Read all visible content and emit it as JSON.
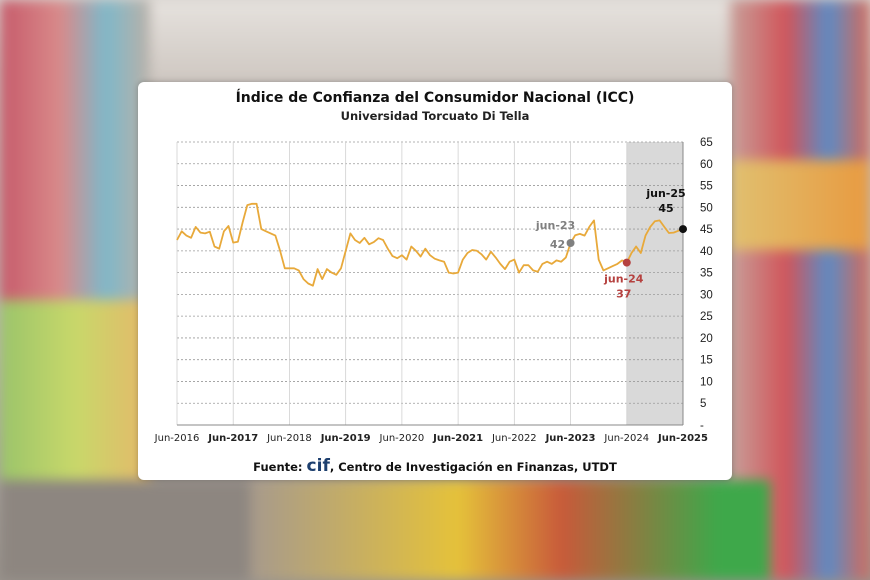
{
  "chart_data": {
    "type": "line",
    "title": "Índice de Confianza del Consumidor Nacional (ICC)",
    "subtitle": "Universidad Torcuato Di Tella",
    "source_prefix": "Fuente:",
    "source_logo": "cif",
    "source_rest": ", Centro de Investigación en Finanzas, UTDT",
    "xlabel": "",
    "ylabel": "",
    "x_start": "Jun-2016",
    "x_unit": "month",
    "x_ticks": [
      "Jun-2016",
      "Jun-2017",
      "Jun-2018",
      "Jun-2019",
      "Jun-2020",
      "Jun-2021",
      "Jun-2022",
      "Jun-2023",
      "Jun-2024",
      "Jun-2025"
    ],
    "y_ticks": [
      "-",
      "5",
      "10",
      "15",
      "20",
      "25",
      "30",
      "35",
      "40",
      "45",
      "50",
      "55",
      "60",
      "65"
    ],
    "ylim": [
      0,
      65
    ],
    "grid": true,
    "shaded_region_months": [
      96,
      108
    ],
    "series": [
      {
        "name": "ICC",
        "color": "#e8a93a",
        "values": [
          42.5,
          44.5,
          43.5,
          43,
          45.5,
          44.2,
          44,
          44.4,
          41,
          40.5,
          44.5,
          45.7,
          41.9,
          42.1,
          46.5,
          50.5,
          50.8,
          50.8,
          45,
          44.5,
          44,
          43.5,
          40,
          36,
          36,
          36,
          35.5,
          33.5,
          32.5,
          32,
          35.8,
          33.5,
          35.8,
          35,
          34.5,
          36,
          40,
          44,
          42.5,
          41.8,
          43,
          41.5,
          42,
          42.9,
          42.5,
          40.5,
          38.8,
          38.3,
          39,
          38,
          41,
          40,
          38.7,
          40.5,
          39,
          38.2,
          37.8,
          37.5,
          35,
          34.8,
          35,
          38,
          39.5,
          40.2,
          40,
          39.2,
          38,
          39.8,
          38.5,
          37,
          35.8,
          37.5,
          38,
          35,
          36.7,
          36.7,
          35.5,
          35.2,
          37,
          37.5,
          37,
          37.8,
          37.5,
          38.5,
          41.8,
          43.6,
          43.9,
          43.5,
          45.5,
          47,
          38,
          35.5,
          36,
          36.5,
          37,
          37.8,
          37.3,
          39.5,
          41,
          39.5,
          43.5,
          45.5,
          46.8,
          47,
          45.5,
          44.1,
          44.2,
          44.6,
          45
        ]
      }
    ],
    "annotations": [
      {
        "label": "jun-23",
        "value_label": "42",
        "month": 84,
        "value": 41.8,
        "color": "#808080"
      },
      {
        "label": "jun-24",
        "value_label": "37",
        "month": 96,
        "value": 37.3,
        "color": "#b5413f"
      },
      {
        "label": "jun-25",
        "value_label": "45",
        "month": 108,
        "value": 45,
        "color": "#111111"
      }
    ]
  }
}
